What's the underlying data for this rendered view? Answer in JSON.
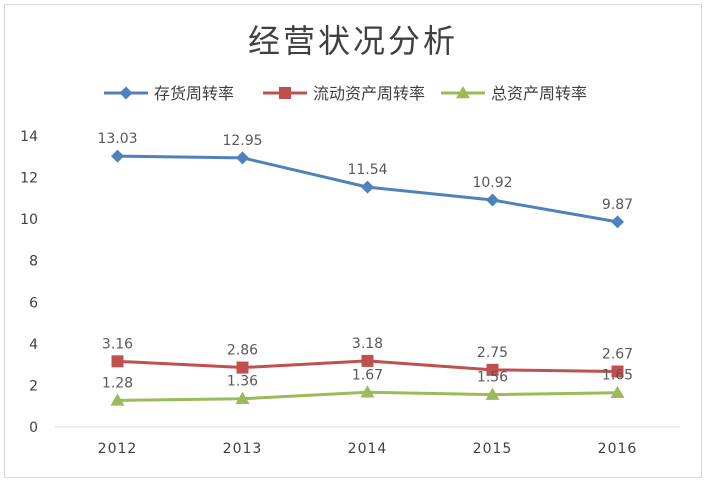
{
  "chart_data": {
    "type": "line",
    "title": "经营状况分析",
    "categories": [
      "2012",
      "2013",
      "2014",
      "2015",
      "2016"
    ],
    "ylim": [
      0,
      14
    ],
    "yticks": [
      0,
      2,
      4,
      6,
      8,
      10,
      12,
      14
    ],
    "grid": false,
    "legend_position": "top",
    "series": [
      {
        "name": "存货周转率",
        "values": [
          13.03,
          12.95,
          11.54,
          10.92,
          9.87
        ],
        "labels": [
          "13.03",
          "12.95",
          "11.54",
          "10.92",
          "9.87"
        ],
        "color": "#4f81bd",
        "marker": "diamond"
      },
      {
        "name": "流动资产周转率",
        "values": [
          3.16,
          2.86,
          3.18,
          2.75,
          2.67
        ],
        "labels": [
          "3.16",
          "2.86",
          "3.18",
          "2.75",
          "2.67"
        ],
        "color": "#c0504d",
        "marker": "square"
      },
      {
        "name": "总资产周转率",
        "values": [
          1.28,
          1.36,
          1.67,
          1.56,
          1.65
        ],
        "labels": [
          "1.28",
          "1.36",
          "1.67",
          "1.56",
          "1.65"
        ],
        "color": "#9bbb59",
        "marker": "triangle"
      }
    ]
  }
}
